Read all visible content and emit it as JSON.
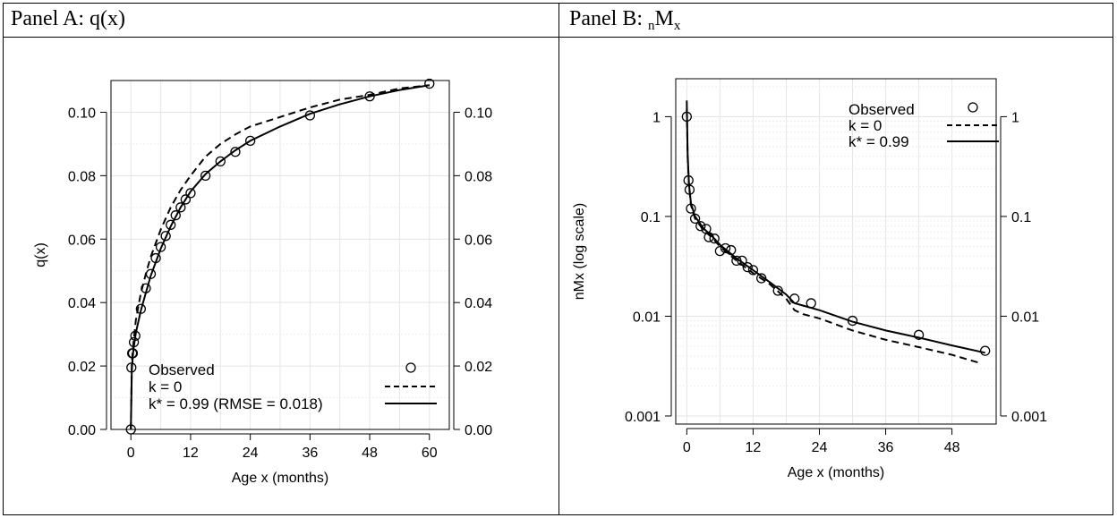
{
  "panels": [
    {
      "title": "Panel A: q(x)"
    },
    {
      "title_parts": [
        "Panel B: ",
        "n",
        "M",
        "x",
        ""
      ]
    }
  ],
  "chart_data": [
    {
      "type": "line",
      "xlabel": "Age x (months)",
      "ylabel": "q(x)",
      "xlim": [
        -4,
        64
      ],
      "ylim": [
        0,
        0.11
      ],
      "x_ticks": [
        0,
        12,
        24,
        36,
        48,
        60
      ],
      "x_tick_labels": [
        "0",
        "12",
        "24",
        "36",
        "48",
        "60"
      ],
      "y_ticks": [
        0,
        0.02,
        0.04,
        0.06,
        0.08,
        0.1
      ],
      "y_tick_labels": [
        "0.00",
        "0.02",
        "0.04",
        "0.06",
        "0.08",
        "0.10"
      ],
      "grid": true,
      "legend_position": "bottom",
      "legend": [
        {
          "label": "Observed",
          "style": "circle"
        },
        {
          "label": "k = 0",
          "style": "dashed"
        },
        {
          "label": "k* = 0.99 (RMSE = 0.018)",
          "style": "solid"
        }
      ],
      "series": [
        {
          "name": "Observed",
          "kind": "scatter",
          "points": [
            [
              0,
              0.0
            ],
            [
              0.1,
              0.0195
            ],
            [
              0.25,
              0.024
            ],
            [
              0.4,
              0.024
            ],
            [
              0.6,
              0.0275
            ],
            [
              0.9,
              0.0295
            ],
            [
              2,
              0.038
            ],
            [
              3,
              0.0445
            ],
            [
              4,
              0.049
            ],
            [
              5,
              0.054
            ],
            [
              6,
              0.0575
            ],
            [
              7,
              0.061
            ],
            [
              8,
              0.0645
            ],
            [
              9,
              0.0675
            ],
            [
              10,
              0.07
            ],
            [
              11,
              0.0725
            ],
            [
              12,
              0.0745
            ],
            [
              15,
              0.08
            ],
            [
              18,
              0.0845
            ],
            [
              21,
              0.0875
            ],
            [
              24,
              0.091
            ],
            [
              36,
              0.099
            ],
            [
              48,
              0.105
            ],
            [
              60,
              0.109
            ]
          ]
        },
        {
          "name": "k = 0",
          "kind": "line",
          "dash": "dashed",
          "points": [
            [
              0,
              0.0
            ],
            [
              0.2,
              0.021
            ],
            [
              0.5,
              0.027
            ],
            [
              1,
              0.0345
            ],
            [
              2,
              0.043
            ],
            [
              3,
              0.049
            ],
            [
              4,
              0.0545
            ],
            [
              6,
              0.063
            ],
            [
              8,
              0.07
            ],
            [
              10,
              0.0755
            ],
            [
              12,
              0.08
            ],
            [
              15,
              0.086
            ],
            [
              18,
              0.09
            ],
            [
              21,
              0.093
            ],
            [
              24,
              0.0955
            ],
            [
              30,
              0.0985
            ],
            [
              36,
              0.1015
            ],
            [
              42,
              0.104
            ],
            [
              48,
              0.1055
            ],
            [
              54,
              0.1075
            ],
            [
              60,
              0.1085
            ]
          ]
        },
        {
          "name": "k* = 0.99",
          "kind": "line",
          "dash": "solid",
          "points": [
            [
              0,
              0.0
            ],
            [
              0.2,
              0.019
            ],
            [
              0.5,
              0.025
            ],
            [
              1,
              0.0305
            ],
            [
              2,
              0.0375
            ],
            [
              3,
              0.043
            ],
            [
              4,
              0.0485
            ],
            [
              6,
              0.057
            ],
            [
              8,
              0.064
            ],
            [
              10,
              0.07
            ],
            [
              12,
              0.075
            ],
            [
              15,
              0.0805
            ],
            [
              18,
              0.0845
            ],
            [
              21,
              0.088
            ],
            [
              24,
              0.091
            ],
            [
              30,
              0.0955
            ],
            [
              36,
              0.0995
            ],
            [
              42,
              0.1025
            ],
            [
              48,
              0.105
            ],
            [
              54,
              0.107
            ],
            [
              60,
              0.1085
            ]
          ]
        }
      ]
    },
    {
      "type": "line",
      "xlabel": "Age x (months)",
      "ylabel": "nMx (log scale)",
      "y_scale": "log",
      "xlim": [
        -2,
        56
      ],
      "ylim": [
        0.00083,
        2.4
      ],
      "x_ticks": [
        0,
        12,
        24,
        36,
        48
      ],
      "x_tick_labels": [
        "0",
        "12",
        "24",
        "36",
        "48"
      ],
      "y_ticks": [
        0.001,
        0.01,
        0.1,
        1
      ],
      "y_tick_labels": [
        "0.001",
        "0.01",
        "0.1",
        "1"
      ],
      "grid": true,
      "legend_position": "top-right",
      "legend": [
        {
          "label": "Observed",
          "style": "circle"
        },
        {
          "label": "k = 0",
          "style": "dashed"
        },
        {
          "label": "k* = 0.99",
          "style": "solid"
        }
      ],
      "series": [
        {
          "name": "Observed",
          "kind": "scatter",
          "points": [
            [
              0,
              1.0
            ],
            [
              0.3,
              0.23
            ],
            [
              0.5,
              0.185
            ],
            [
              0.75,
              0.12
            ],
            [
              1.5,
              0.095
            ],
            [
              2.5,
              0.08
            ],
            [
              3.5,
              0.075
            ],
            [
              4,
              0.062
            ],
            [
              5,
              0.06
            ],
            [
              6,
              0.045
            ],
            [
              7,
              0.048
            ],
            [
              8,
              0.046
            ],
            [
              9,
              0.036
            ],
            [
              10,
              0.036
            ],
            [
              11,
              0.031
            ],
            [
              12,
              0.029
            ],
            [
              13.5,
              0.024
            ],
            [
              16.5,
              0.018
            ],
            [
              19.5,
              0.015
            ],
            [
              22.5,
              0.0135
            ],
            [
              30,
              0.009
            ],
            [
              42,
              0.0065
            ],
            [
              54,
              0.0045
            ]
          ]
        },
        {
          "name": "k = 0",
          "kind": "line",
          "dash": "dashed",
          "points": [
            [
              0,
              1.2
            ],
            [
              0.15,
              0.4
            ],
            [
              0.4,
              0.2
            ],
            [
              0.75,
              0.13
            ],
            [
              1.5,
              0.095
            ],
            [
              3,
              0.073
            ],
            [
              4.5,
              0.062
            ],
            [
              6,
              0.05
            ],
            [
              9,
              0.036
            ],
            [
              12,
              0.027
            ],
            [
              15,
              0.021
            ],
            [
              18,
              0.015
            ],
            [
              19.5,
              0.0115
            ],
            [
              21,
              0.0105
            ],
            [
              24,
              0.0095
            ],
            [
              30,
              0.0072
            ],
            [
              36,
              0.0058
            ],
            [
              42,
              0.0049
            ],
            [
              48,
              0.0041
            ],
            [
              53,
              0.0034
            ]
          ]
        },
        {
          "name": "k* = 0.99",
          "kind": "line",
          "dash": "solid",
          "points": [
            [
              0,
              1.45
            ],
            [
              0.15,
              0.42
            ],
            [
              0.4,
              0.21
            ],
            [
              0.75,
              0.135
            ],
            [
              1.5,
              0.1
            ],
            [
              3,
              0.076
            ],
            [
              4.5,
              0.064
            ],
            [
              6,
              0.052
            ],
            [
              9,
              0.038
            ],
            [
              12,
              0.029
            ],
            [
              15,
              0.022
            ],
            [
              18,
              0.0165
            ],
            [
              19.5,
              0.0135
            ],
            [
              21,
              0.0128
            ],
            [
              24,
              0.0115
            ],
            [
              30,
              0.0088
            ],
            [
              36,
              0.0072
            ],
            [
              42,
              0.0061
            ],
            [
              48,
              0.0051
            ],
            [
              54,
              0.0043
            ]
          ]
        }
      ]
    }
  ]
}
